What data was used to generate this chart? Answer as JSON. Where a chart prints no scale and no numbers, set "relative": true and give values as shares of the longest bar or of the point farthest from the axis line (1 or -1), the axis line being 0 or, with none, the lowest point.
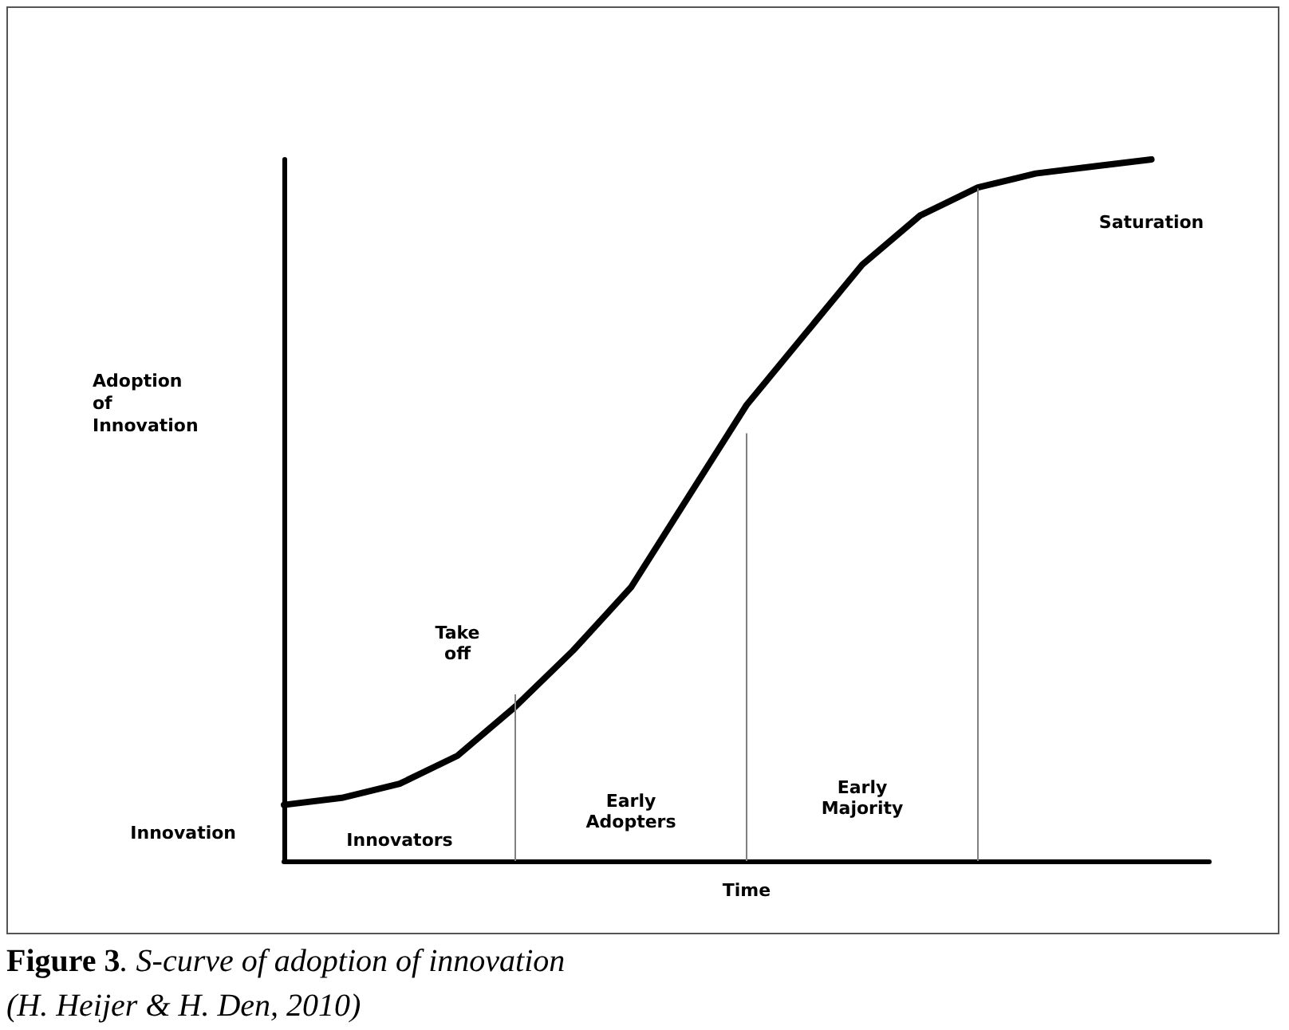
{
  "chart_data": {
    "type": "line",
    "relative": true,
    "xlabel": "Time",
    "categories": [
      null,
      null,
      null,
      null,
      null,
      null,
      null,
      null,
      null,
      null,
      null,
      null,
      null,
      null,
      null,
      null,
      null
    ],
    "series": [
      {
        "color": "#000000",
        "values": [
          0.08,
          0.09,
          0.11,
          0.15,
          0.22,
          0.3,
          0.39,
          0.52,
          0.65,
          0.75,
          0.85,
          0.92,
          0.96,
          0.98,
          0.99,
          1,
          null
        ]
      }
    ],
    "grid": false,
    "marker": "none",
    "line_style": "solid",
    "annotations": [
      "Take off",
      "Innovators",
      "Early Adopters",
      "Early Majority",
      "Saturation",
      "Adoption of Innovation",
      "Innovation",
      "Figure 3. S-curve of adoption of innovation",
      "(H. Heijer & H. Den, 2010)"
    ]
  }
}
